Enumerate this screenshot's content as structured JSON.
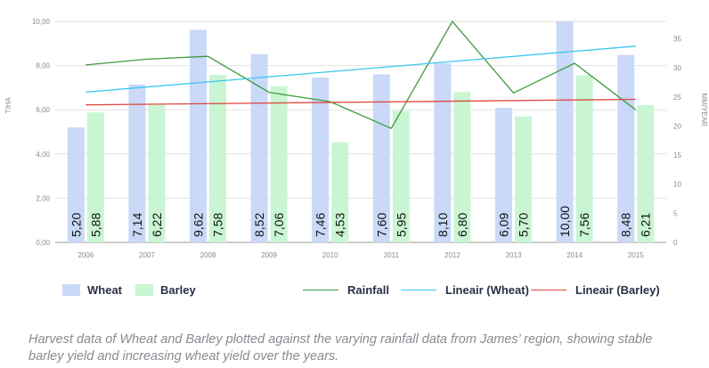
{
  "chart_data": {
    "type": "bar",
    "categories": [
      "2006",
      "2007",
      "2008",
      "2009",
      "2010",
      "2011",
      "2012",
      "2013",
      "2014",
      "2015"
    ],
    "series": [
      {
        "name": "Wheat",
        "type": "bar",
        "axis": "left",
        "color": "#c9d9f7",
        "values": [
          5.2,
          7.14,
          9.62,
          8.52,
          7.46,
          7.6,
          8.1,
          6.09,
          10.0,
          8.48
        ],
        "labels": [
          "5,20",
          "7,14",
          "9,62",
          "8,52",
          "7,46",
          "7,60",
          "8,10",
          "6,09",
          "10,00",
          "8,48"
        ]
      },
      {
        "name": "Barley",
        "type": "bar",
        "axis": "left",
        "color": "#c9f5d3",
        "values": [
          5.88,
          6.22,
          7.58,
          7.06,
          4.53,
          5.95,
          6.8,
          5.7,
          7.56,
          6.21
        ],
        "labels": [
          "5,88",
          "6,22",
          "7,58",
          "7,06",
          "4,53",
          "5,95",
          "6,80",
          "5,70",
          "7,56",
          "6,21"
        ]
      },
      {
        "name": "Rainfall",
        "type": "line",
        "axis": "right",
        "color": "#3f9a3f",
        "values": [
          30.5,
          31.5,
          32,
          25.8,
          24.2,
          19.6,
          38,
          25.7,
          30.8,
          22.8
        ]
      },
      {
        "name": "Lineair (Wheat)",
        "type": "line",
        "axis": "left",
        "color": "#39c6ee",
        "values": [
          6.8,
          7.03,
          7.26,
          7.5,
          7.73,
          7.96,
          8.19,
          8.42,
          8.65,
          8.88
        ]
      },
      {
        "name": "Lineair (Barley)",
        "type": "line",
        "axis": "left",
        "color": "#e0443c",
        "values": [
          6.22,
          6.25,
          6.28,
          6.31,
          6.33,
          6.36,
          6.39,
          6.42,
          6.44,
          6.47
        ]
      }
    ],
    "ylabel": "T/HA",
    "ylim": [
      0,
      10
    ],
    "yticks": [
      "0,00",
      "2,00",
      "4,00",
      "6,00",
      "8,00",
      "10,00"
    ],
    "y2label": "MM/YEAR",
    "y2lim": [
      0,
      38
    ],
    "y2ticks": [
      "0",
      "5",
      "10",
      "15",
      "20",
      "25",
      "30",
      "35"
    ],
    "grid": true,
    "legend_position": "bottom"
  },
  "legend": {
    "wheat": "Wheat",
    "barley": "Barley",
    "rainfall": "Rainfall",
    "lin_wheat": "Lineair (Wheat)",
    "lin_barley": "Lineair (Barley)"
  },
  "caption": "Harvest data of Wheat and Barley plotted against the varying rainfall data from James’ region, showing stable barley yield and increasing wheat yield over the years."
}
